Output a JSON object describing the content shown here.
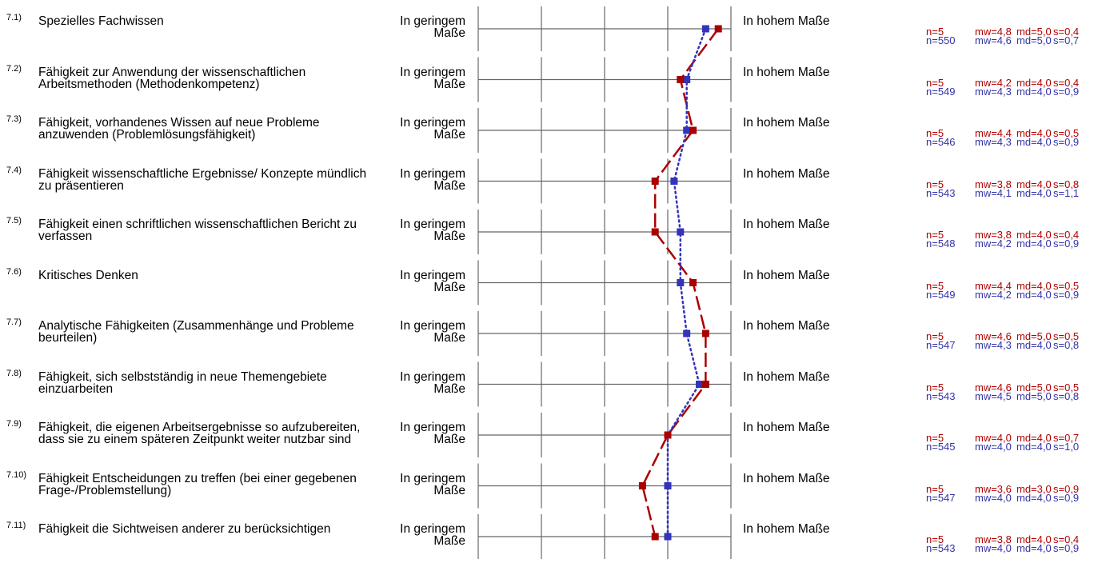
{
  "colors": {
    "course": "#aa0000",
    "reference": "#3333bb",
    "grid": "#666666"
  },
  "scale": {
    "left_anchor": "In geringem Maße",
    "right_anchor": "In hohem Maße",
    "min": 1,
    "max": 5
  },
  "items": [
    {
      "num": "7.1)",
      "label": "Spezielles Fachwissen",
      "a": {
        "n": "n=5",
        "mw": "mw=4,8",
        "md": "md=5,0",
        "s": "s=0,4"
      },
      "b": {
        "n": "n=550",
        "mw": "mw=4,6",
        "md": "md=5,0",
        "s": "s=0,7"
      }
    },
    {
      "num": "7.2)",
      "label": "Fähigkeit zur Anwendung der wissenschaftlichen Arbeitsmethoden (Methodenkompetenz)",
      "a": {
        "n": "n=5",
        "mw": "mw=4,2",
        "md": "md=4,0",
        "s": "s=0,4"
      },
      "b": {
        "n": "n=549",
        "mw": "mw=4,3",
        "md": "md=4,0",
        "s": "s=0,9"
      }
    },
    {
      "num": "7.3)",
      "label": "Fähigkeit, vorhandenes Wissen auf neue Probleme anzuwenden (Problemlösungsfähigkeit)",
      "a": {
        "n": "n=5",
        "mw": "mw=4,4",
        "md": "md=4,0",
        "s": "s=0,5"
      },
      "b": {
        "n": "n=546",
        "mw": "mw=4,3",
        "md": "md=4,0",
        "s": "s=0,9"
      }
    },
    {
      "num": "7.4)",
      "label": "Fähigkeit wissenschaftliche Ergebnisse/ Konzepte mündlich zu präsentieren",
      "a": {
        "n": "n=5",
        "mw": "mw=3,8",
        "md": "md=4,0",
        "s": "s=0,8"
      },
      "b": {
        "n": "n=543",
        "mw": "mw=4,1",
        "md": "md=4,0",
        "s": "s=1,1"
      }
    },
    {
      "num": "7.5)",
      "label": "Fähigkeit einen schriftlichen wissenschaftlichen Bericht zu verfassen",
      "a": {
        "n": "n=5",
        "mw": "mw=3,8",
        "md": "md=4,0",
        "s": "s=0,4"
      },
      "b": {
        "n": "n=548",
        "mw": "mw=4,2",
        "md": "md=4,0",
        "s": "s=0,9"
      }
    },
    {
      "num": "7.6)",
      "label": "Kritisches Denken",
      "a": {
        "n": "n=5",
        "mw": "mw=4,4",
        "md": "md=4,0",
        "s": "s=0,5"
      },
      "b": {
        "n": "n=549",
        "mw": "mw=4,2",
        "md": "md=4,0",
        "s": "s=0,9"
      }
    },
    {
      "num": "7.7)",
      "label": "Analytische Fähigkeiten (Zusammenhänge und Probleme beurteilen)",
      "a": {
        "n": "n=5",
        "mw": "mw=4,6",
        "md": "md=5,0",
        "s": "s=0,5"
      },
      "b": {
        "n": "n=547",
        "mw": "mw=4,3",
        "md": "md=4,0",
        "s": "s=0,8"
      }
    },
    {
      "num": "7.8)",
      "label": "Fähigkeit, sich selbstständig in neue Themengebiete einzuarbeiten",
      "a": {
        "n": "n=5",
        "mw": "mw=4,6",
        "md": "md=5,0",
        "s": "s=0,5"
      },
      "b": {
        "n": "n=543",
        "mw": "mw=4,5",
        "md": "md=5,0",
        "s": "s=0,8"
      }
    },
    {
      "num": "7.9)",
      "label": "Fähigkeit, die eigenen Arbeitsergebnisse so aufzubereiten, dass sie zu einem späteren Zeitpunkt weiter nutzbar sind",
      "a": {
        "n": "n=5",
        "mw": "mw=4,0",
        "md": "md=4,0",
        "s": "s=0,7"
      },
      "b": {
        "n": "n=545",
        "mw": "mw=4,0",
        "md": "md=4,0",
        "s": "s=1,0"
      }
    },
    {
      "num": "7.10)",
      "label": "Fähigkeit Entscheidungen zu treffen (bei einer gegebenen Frage-/Problemstellung)",
      "a": {
        "n": "n=5",
        "mw": "mw=3,6",
        "md": "md=3,0",
        "s": "s=0,9"
      },
      "b": {
        "n": "n=547",
        "mw": "mw=4,0",
        "md": "md=4,0",
        "s": "s=0,9"
      }
    },
    {
      "num": "7.11)",
      "label": "Fähigkeit die Sichtweisen anderer zu berücksichtigen",
      "a": {
        "n": "n=5",
        "mw": "mw=3,8",
        "md": "md=4,0",
        "s": "s=0,4"
      },
      "b": {
        "n": "n=543",
        "mw": "mw=4,0",
        "md": "md=4,0",
        "s": "s=0,9"
      }
    }
  ],
  "chart_data": {
    "type": "line",
    "categories": [
      "7.1)",
      "7.2)",
      "7.3)",
      "7.4)",
      "7.5)",
      "7.6)",
      "7.7)",
      "7.8)",
      "7.9)",
      "7.10)",
      "7.11)"
    ],
    "xlim": [
      1,
      5
    ],
    "series": [
      {
        "values": [
          4.8,
          4.2,
          4.4,
          3.8,
          3.8,
          4.4,
          4.6,
          4.6,
          4.0,
          3.6,
          3.8
        ],
        "color": "#aa0000",
        "style": "dashed"
      },
      {
        "values": [
          4.6,
          4.3,
          4.3,
          4.1,
          4.2,
          4.2,
          4.3,
          4.5,
          4.0,
          4.0,
          4.0
        ],
        "color": "#3333bb",
        "style": "dotted"
      }
    ]
  }
}
